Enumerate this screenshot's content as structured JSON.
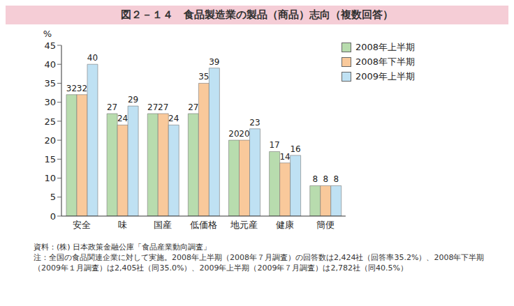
{
  "chart_data": {
    "type": "bar",
    "title": "図２－１４　食品製造業の製品（商品）志向（複数回答）",
    "y_label": "%",
    "categories": [
      "安全",
      "味",
      "国産",
      "低価格",
      "地元産",
      "健康",
      "簡便"
    ],
    "series": [
      {
        "name": "2008年上半期",
        "color": "#b8dcae",
        "values": [
          32,
          27,
          27,
          27,
          20,
          17,
          8
        ]
      },
      {
        "name": "2008年下半期",
        "color": "#f9c99b",
        "values": [
          32,
          24,
          27,
          35,
          20,
          14,
          8
        ]
      },
      {
        "name": "2009年上半期",
        "color": "#bfe1f3",
        "values": [
          40,
          29,
          24,
          39,
          23,
          16,
          8
        ]
      }
    ],
    "ylim": [
      0,
      45
    ],
    "yticks": [
      0,
      5,
      10,
      15,
      20,
      25,
      30,
      35,
      40,
      45
    ],
    "grid": false,
    "legend": "top right",
    "data_labels": true,
    "source": "資料：(株) 日本政策金融公庫「食品産業動向調査」",
    "note": "注：全国の食品関連企業に対して実施。2008年上半期（2008年７月調査）の回答数は2,424社（回答率35.2%）、2008年下半期（2009年１月調査）は2,405社（同35.0%）、2009年上半期（2009年７月調査）は2,782社（同40.5%）"
  }
}
